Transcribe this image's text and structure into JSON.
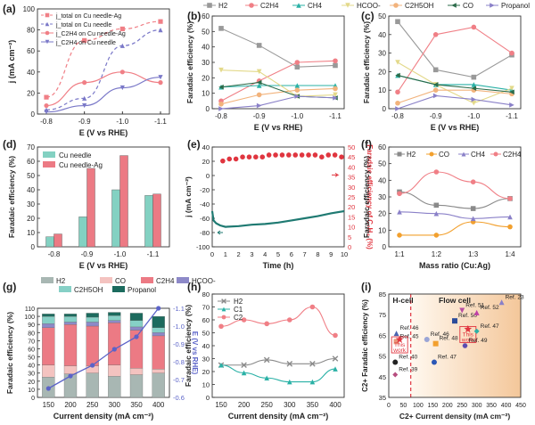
{
  "figure": {
    "panels": [
      "(a)",
      "(b)",
      "(c)",
      "(d)",
      "(e)",
      "(f)",
      "(g)",
      "(h)",
      "(i)"
    ]
  },
  "chart_data": [
    {
      "panel": "(a)",
      "type": "line",
      "xlabel": "E (V vs RHE)",
      "ylabel": "j (mA cm⁻²)",
      "x": [
        -0.8,
        -0.9,
        -1.0,
        -1.1
      ],
      "xticks": [
        "-0.8",
        "-0.9",
        "-1.0",
        "-1.1"
      ],
      "ylim": [
        0,
        100
      ],
      "yticks": [
        0,
        20,
        40,
        60,
        80,
        100
      ],
      "legend": [
        "j_total on Cu needle-Ag",
        "j_total on Cu needle",
        "j_C2H4 on Cu needle-Ag",
        "j_C2H4 on Cu needle"
      ],
      "series": [
        {
          "name": "j_total on Cu needle-Ag",
          "values": [
            16,
            70,
            81,
            88
          ],
          "color": "#f07f86",
          "dashed": true,
          "marker": "square"
        },
        {
          "name": "j_total on Cu needle",
          "values": [
            4,
            15,
            65,
            80
          ],
          "color": "#7a78c8",
          "dashed": true,
          "marker": "triangle"
        },
        {
          "name": "j_C2H4 on Cu needle-Ag",
          "values": [
            8,
            30,
            40,
            30
          ],
          "color": "#f07f86",
          "dashed": false,
          "marker": "circle"
        },
        {
          "name": "j_C2H4 on Cu needle",
          "values": [
            2,
            8,
            25,
            35
          ],
          "color": "#7a78c8",
          "dashed": false,
          "marker": "triangle-down"
        }
      ]
    },
    {
      "panel": "(b)",
      "type": "line",
      "xlabel": "E (V vs RHE)",
      "ylabel": "Faradaic efficiency (%)",
      "x": [
        -0.8,
        -0.9,
        -1.0,
        -1.1
      ],
      "xticks": [
        "-0.8",
        "-0.9",
        "-1.0",
        "-1.1"
      ],
      "ylim": [
        0,
        60
      ],
      "yticks": [
        0,
        10,
        20,
        30,
        40,
        50,
        60
      ],
      "legend": [
        "H2",
        "C2H4",
        "CH4",
        "HCOO-",
        "C2H5OH",
        "CO",
        "Propanol"
      ],
      "series": [
        {
          "name": "H2",
          "values": [
            52,
            41,
            27,
            28
          ],
          "color": "#999999",
          "marker": "square"
        },
        {
          "name": "C2H4",
          "values": [
            5,
            18,
            30,
            31
          ],
          "color": "#f07f86",
          "marker": "circle"
        },
        {
          "name": "CH4",
          "values": [
            14,
            15,
            15,
            15
          ],
          "color": "#2ab1a6",
          "marker": "triangle"
        },
        {
          "name": "HCOO-",
          "values": [
            25,
            24,
            8,
            9
          ],
          "color": "#e3d98a",
          "marker": "triangle-down"
        },
        {
          "name": "C2H5OH",
          "values": [
            3,
            9,
            12,
            13
          ],
          "color": "#f2b37c",
          "marker": "circle"
        },
        {
          "name": "CO",
          "values": [
            14,
            17,
            8,
            7
          ],
          "color": "#2c6b4a",
          "marker": "triangle-left"
        },
        {
          "name": "Propanol",
          "values": [
            0,
            2,
            8,
            7
          ],
          "color": "#8a80c8",
          "marker": "triangle-right"
        }
      ]
    },
    {
      "panel": "(c)",
      "type": "line",
      "xlabel": "E (V vs RHE)",
      "ylabel": "Faradaic efficiency (%)",
      "x": [
        -0.8,
        -0.9,
        -1.0,
        -1.1
      ],
      "xticks": [
        "-0.8",
        "-0.9",
        "-1.0",
        "-1.1"
      ],
      "ylim": [
        0,
        50
      ],
      "yticks": [
        0,
        10,
        20,
        30,
        40,
        50
      ],
      "series": [
        {
          "name": "H2",
          "values": [
            47,
            21,
            17,
            29
          ],
          "color": "#999999",
          "marker": "square"
        },
        {
          "name": "C2H4",
          "values": [
            9,
            40,
            44,
            30
          ],
          "color": "#f07f86",
          "marker": "circle"
        },
        {
          "name": "CH4",
          "values": [
            18,
            13,
            13,
            10
          ],
          "color": "#2ab1a6",
          "marker": "triangle"
        },
        {
          "name": "HCOO-",
          "values": [
            25,
            13,
            3,
            11
          ],
          "color": "#e3d98a",
          "marker": "triangle-down"
        },
        {
          "name": "C2H5OH",
          "values": [
            3,
            10,
            10,
            8
          ],
          "color": "#f2b37c",
          "marker": "circle"
        },
        {
          "name": "CO",
          "values": [
            18,
            13,
            11,
            9
          ],
          "color": "#2c6b4a",
          "marker": "triangle-left"
        },
        {
          "name": "Propanol",
          "values": [
            0,
            7,
            5,
            2
          ],
          "color": "#8a80c8",
          "marker": "triangle-right"
        }
      ]
    },
    {
      "panel": "(d)",
      "type": "bar",
      "xlabel": "E (V vs RHE)",
      "ylabel": "Faradaic efficiency (%)",
      "categories": [
        "-0.8",
        "-0.9",
        "-1.0",
        "-1.1"
      ],
      "ylim": [
        0,
        70
      ],
      "yticks": [
        0,
        10,
        20,
        30,
        40,
        50,
        60,
        70
      ],
      "legend": [
        "Cu needle",
        "Cu needle-Ag"
      ],
      "series": [
        {
          "name": "Cu needle",
          "values": [
            7,
            21,
            40,
            36
          ],
          "color": "#83d1c2"
        },
        {
          "name": "Cu needle-Ag",
          "values": [
            9,
            55,
            64,
            37
          ],
          "color": "#ec7a84"
        }
      ]
    },
    {
      "panel": "(e)",
      "type": "line",
      "xlabel": "Time (h)",
      "ylabel": "j (mA cm⁻²)",
      "ylabel_right": "Faradaic efficiency of C₂H₄ (%)",
      "xlim": [
        0,
        10
      ],
      "xticks": [
        0,
        1,
        2,
        3,
        4,
        5,
        6,
        7,
        8,
        9,
        10
      ],
      "ylim": [
        -100,
        40
      ],
      "yticks": [
        -100,
        -80,
        -60,
        -40,
        -20,
        0,
        20,
        40
      ],
      "ylim_right": [
        0,
        50
      ],
      "yticks_right": [
        0,
        5,
        10,
        15,
        20,
        25,
        30,
        35,
        40,
        45,
        50
      ],
      "series": [
        {
          "name": "j",
          "axis": "left",
          "color": "#1f7a72",
          "x": [
            0,
            0.1,
            0.3,
            0.6,
            1,
            2,
            3,
            4,
            5,
            6,
            7,
            8,
            9,
            10
          ],
          "values": [
            -50,
            -63,
            -67,
            -70,
            -72,
            -71,
            -69,
            -68,
            -66,
            -63,
            -60,
            -57,
            -53,
            -50
          ]
        },
        {
          "name": "FE C2H4",
          "axis": "right",
          "color": "#e0353f",
          "x": [
            0.8,
            1.3,
            1.8,
            2.3,
            2.8,
            3.3,
            3.8,
            4.3,
            4.8,
            5.3,
            5.8,
            6.3,
            6.8,
            7.3,
            7.8,
            8.3,
            8.8,
            9.3,
            9.8
          ],
          "values": [
            43,
            44,
            44,
            45,
            45,
            45,
            45,
            46,
            46,
            46,
            46,
            46,
            46,
            46,
            46,
            45,
            46,
            46,
            45
          ]
        }
      ]
    },
    {
      "panel": "(f)",
      "type": "line",
      "xlabel": "Mass ratio (Cu:Ag)",
      "ylabel": "Faradaic efficiency (%)",
      "categories": [
        "1:1",
        "1:2",
        "1:3",
        "1:4"
      ],
      "ylim": [
        0,
        60
      ],
      "yticks": [
        0,
        10,
        20,
        30,
        40,
        50,
        60
      ],
      "legend": [
        "H2",
        "CO",
        "CH4",
        "C2H4"
      ],
      "series": [
        {
          "name": "H2",
          "values": [
            33,
            25,
            23,
            29
          ],
          "color": "#8a8a8a",
          "marker": "square"
        },
        {
          "name": "CO",
          "values": [
            7,
            7,
            15,
            12
          ],
          "color": "#f2a02e",
          "marker": "circle"
        },
        {
          "name": "CH4",
          "values": [
            21,
            20,
            17,
            18
          ],
          "color": "#8a80c8",
          "marker": "triangle"
        },
        {
          "name": "C2H4",
          "values": [
            32,
            45,
            39,
            29
          ],
          "color": "#f07f86",
          "marker": "circle"
        }
      ]
    },
    {
      "panel": "(g)",
      "type": "bar",
      "xlabel": "Current density (mA cm⁻²)",
      "ylabel": "Faradaic efficiency (%)",
      "ylabel_right": "E (V vs RHE)",
      "categories": [
        "150",
        "200",
        "250",
        "300",
        "350",
        "400"
      ],
      "ylim": [
        0,
        110
      ],
      "yticks": [
        0,
        10,
        20,
        30,
        40,
        50,
        60,
        70,
        80,
        90,
        100,
        110
      ],
      "ylim_right": [
        -0.6,
        -1.1
      ],
      "yticks_right": [
        "-0.6",
        "-0.7",
        "-0.8",
        "-0.9",
        "-1.0",
        "-1.1"
      ],
      "legend": [
        "H2",
        "CO",
        "C2H4",
        "HCOO-",
        "C2H5OH",
        "Propanol"
      ],
      "series": [
        {
          "name": "H2",
          "values": [
            25,
            29,
            30,
            26,
            28,
            30
          ],
          "color": "#a8b7b3"
        },
        {
          "name": "CO",
          "values": [
            15,
            10,
            9,
            14,
            8,
            5
          ],
          "color": "#f4c3c0"
        },
        {
          "name": "C2H4",
          "values": [
            46,
            51,
            49,
            52,
            47,
            41
          ],
          "color": "#ec7a84"
        },
        {
          "name": "HCOO-",
          "values": [
            5,
            3,
            5,
            3,
            4,
            4
          ],
          "color": "#8d89c8"
        },
        {
          "name": "C2H5OH",
          "values": [
            9,
            7,
            6,
            6,
            8,
            6
          ],
          "color": "#86d0c6"
        },
        {
          "name": "Propanol",
          "values": [
            3,
            3,
            5,
            4,
            9,
            14
          ],
          "color": "#1c6b5e"
        }
      ],
      "potential": {
        "name": "E",
        "values": [
          -0.65,
          -0.72,
          -0.78,
          -0.87,
          -0.94,
          -1.1
        ],
        "color": "#5b63c8"
      }
    },
    {
      "panel": "(h)",
      "type": "line",
      "xlabel": "Current density (mA cm⁻²)",
      "ylabel": "Faradaic efficiency (%)",
      "x": [
        150,
        200,
        250,
        300,
        350,
        400
      ],
      "xticks": [
        "150",
        "200",
        "250",
        "300",
        "350",
        "400"
      ],
      "ylim": [
        0,
        80
      ],
      "yticks": [
        0,
        10,
        20,
        30,
        40,
        50,
        60,
        70,
        80
      ],
      "legend": [
        "H2",
        "C1",
        "C2"
      ],
      "series": [
        {
          "name": "H2",
          "values": [
            25,
            25,
            29,
            26,
            26,
            30
          ],
          "color": "#8a8a8a",
          "marker": "cross"
        },
        {
          "name": "C1",
          "values": [
            25,
            19,
            15,
            12,
            12,
            22
          ],
          "color": "#2ab1a6",
          "marker": "triangle"
        },
        {
          "name": "C2",
          "values": [
            55,
            60,
            57,
            60,
            70,
            48
          ],
          "color": "#f07f86",
          "marker": "circle"
        }
      ]
    },
    {
      "panel": "(i)",
      "type": "scatter",
      "xlabel": "C2+ Current density (mA cm⁻²)",
      "ylabel": "C2+ Faradaic efficiency (%)",
      "xlim": [
        0,
        450
      ],
      "xticks": [
        0,
        50,
        100,
        150,
        200,
        250,
        300,
        350,
        400,
        450
      ],
      "ylim": [
        35,
        85
      ],
      "yticks": [
        35,
        40,
        45,
        50,
        55,
        60,
        65,
        70,
        75,
        80,
        85
      ],
      "regions": [
        "H-cell",
        "Flow cell"
      ],
      "points": [
        {
          "label": "Ref. 46",
          "x": 26,
          "y": 66,
          "color": "#4b64b0",
          "marker": "triangle"
        },
        {
          "label": "Ref. 45",
          "x": 26,
          "y": 62,
          "color": "#e9967a",
          "marker": "square"
        },
        {
          "label": "This work",
          "x": 37,
          "y": 63,
          "color": "#e0353f",
          "marker": "star",
          "highlight": true
        },
        {
          "label": "Ref. 40",
          "x": 22,
          "y": 52,
          "color": "#222222",
          "marker": "circle"
        },
        {
          "label": "Ref. 39",
          "x": 22,
          "y": 46,
          "color": "#b74d7f",
          "marker": "diamond"
        },
        {
          "label": "Ref. 46",
          "x": 130,
          "y": 63,
          "color": "#9aa5d6",
          "marker": "circle"
        },
        {
          "label": "Ref. 48",
          "x": 160,
          "y": 61,
          "color": "#f2a02e",
          "marker": "square"
        },
        {
          "label": "Ref. 50",
          "x": 225,
          "y": 72,
          "color": "#2b4c9a",
          "marker": "square"
        },
        {
          "label": "Ref. 51",
          "x": 250,
          "y": 77,
          "color": "#b84da1",
          "marker": "triangle-down"
        },
        {
          "label": "This work",
          "x": 270,
          "y": 68,
          "color": "#e0353f",
          "marker": "star",
          "highlight": true
        },
        {
          "label": "Ref. 52",
          "x": 300,
          "y": 76,
          "color": "#c040a8",
          "marker": "triangle"
        },
        {
          "label": "Ref. 47",
          "x": 300,
          "y": 67,
          "color": "#2ab1a6",
          "marker": "diamond"
        },
        {
          "label": "Ref. 49",
          "x": 260,
          "y": 60,
          "color": "#5b4bb0",
          "marker": "hexagon"
        },
        {
          "label": "Ref. 47",
          "x": 155,
          "y": 52,
          "color": "#2c58b6",
          "marker": "circle"
        },
        {
          "label": "Ref. 23",
          "x": 385,
          "y": 81,
          "color": "#8a80c8",
          "marker": "triangle"
        }
      ]
    }
  ]
}
